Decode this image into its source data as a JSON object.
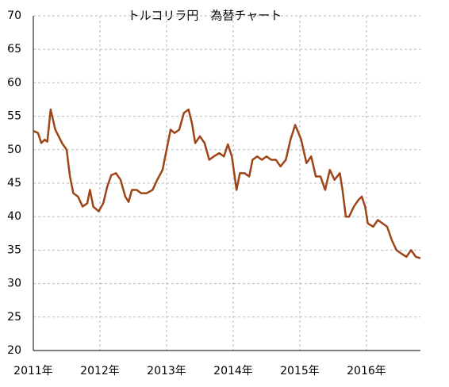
{
  "chart_data": {
    "type": "line",
    "title": "トルコリラ円　為替チャート",
    "x": [
      2011.0,
      2011.07,
      2011.12,
      2011.17,
      2011.21,
      2011.26,
      2011.33,
      2011.43,
      2011.5,
      2011.55,
      2011.6,
      2011.67,
      2011.74,
      2011.81,
      2011.85,
      2011.9,
      2011.98,
      2012.05,
      2012.11,
      2012.17,
      2012.24,
      2012.31,
      2012.38,
      2012.43,
      2012.48,
      2012.55,
      2012.62,
      2012.7,
      2012.79,
      2012.86,
      2012.94,
      2013.0,
      2013.06,
      2013.12,
      2013.19,
      2013.26,
      2013.33,
      2013.38,
      2013.43,
      2013.5,
      2013.57,
      2013.64,
      2013.71,
      2013.79,
      2013.86,
      2013.92,
      2013.98,
      2014.05,
      2014.1,
      2014.17,
      2014.24,
      2014.29,
      2014.36,
      2014.43,
      2014.5,
      2014.57,
      2014.64,
      2014.71,
      2014.79,
      2014.86,
      2014.93,
      2014.98,
      2015.02,
      2015.1,
      2015.17,
      2015.24,
      2015.31,
      2015.38,
      2015.45,
      2015.52,
      2015.6,
      2015.64,
      2015.69,
      2015.74,
      2015.81,
      2015.88,
      2015.93,
      2015.98,
      2016.02,
      2016.1,
      2016.17,
      2016.24,
      2016.31,
      2016.38,
      2016.45,
      2016.52,
      2016.6,
      2016.67,
      2016.74,
      2016.81
    ],
    "series": [
      {
        "color": "#9e4416",
        "values": [
          52.8,
          52.5,
          51,
          51.5,
          51.2,
          56,
          53,
          51,
          50,
          46,
          43.5,
          43,
          41.5,
          42,
          44,
          41.5,
          40.8,
          42,
          44.5,
          46.2,
          46.5,
          45.5,
          43,
          42.2,
          44,
          44,
          43.5,
          43.5,
          44,
          45.5,
          47,
          50,
          53,
          52.5,
          53,
          55.5,
          56,
          54,
          51,
          52,
          51,
          48.5,
          49,
          49.5,
          49,
          50.8,
          49,
          44,
          46.5,
          46.5,
          46,
          48.5,
          49,
          48.5,
          49,
          48.5,
          48.5,
          47.5,
          48.5,
          51.5,
          53.7,
          52.5,
          51.5,
          48,
          49,
          46,
          46,
          44,
          47,
          45.5,
          46.5,
          44,
          40,
          40,
          41.5,
          42.5,
          43,
          41.5,
          39,
          38.5,
          39.5,
          39,
          38.5,
          36.5,
          35,
          34.5,
          34,
          35,
          34,
          33.8
        ]
      }
    ],
    "xlim": [
      2011,
      2016.81
    ],
    "xticks": [
      {
        "value": 2011,
        "label": "2011年"
      },
      {
        "value": 2012,
        "label": "2012年"
      },
      {
        "value": 2013,
        "label": "2013年"
      },
      {
        "value": 2014,
        "label": "2014年"
      },
      {
        "value": 2015,
        "label": "2015年"
      },
      {
        "value": 2016,
        "label": "2016年"
      }
    ],
    "ylim": [
      20,
      70
    ],
    "yticks": [
      20,
      25,
      30,
      35,
      40,
      45,
      50,
      55,
      60,
      65,
      70
    ],
    "grid": true
  }
}
